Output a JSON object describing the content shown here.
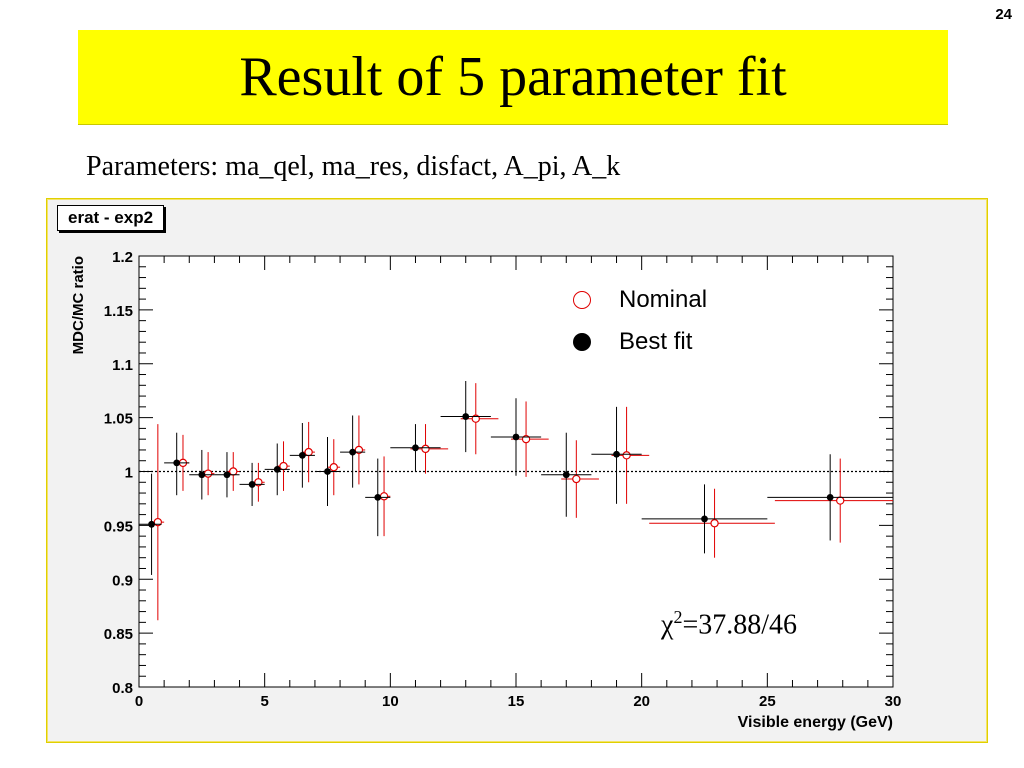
{
  "page_number": "24",
  "title": "Result of 5 parameter fit",
  "subtitle": "Parameters: ma_qel, ma_res, disfact, A_pi, A_k",
  "chart_data": {
    "type": "scatter",
    "title": "erat - exp2",
    "xlabel": "Visible energy (GeV)",
    "ylabel": "MDC/MC ratio",
    "xlim": [
      0,
      30
    ],
    "ylim": [
      0.8,
      1.2
    ],
    "xticks": [
      "0",
      "5",
      "10",
      "15",
      "20",
      "25",
      "30"
    ],
    "yticks": [
      "0.8",
      "0.85",
      "0.9",
      "0.95",
      "1",
      "1.05",
      "1.1",
      "1.15",
      "1.2"
    ],
    "reference_line": 1.0,
    "legend": {
      "placement": "top-right",
      "entries": [
        "Nominal",
        "Best fit"
      ]
    },
    "annotation": {
      "chi2_label": "χ",
      "chi2_sup": "2",
      "chi2_value": "=37.88/46"
    },
    "colors": {
      "nominal": "#e00000",
      "best_fit": "#000000"
    },
    "series": [
      {
        "name": "Nominal",
        "marker": "open-circle",
        "points": [
          {
            "x": 0.75,
            "y": 0.953,
            "xlo": 0.5,
            "xhi": 1.0,
            "ylo": 0.862,
            "yhi": 1.044
          },
          {
            "x": 1.75,
            "y": 1.008,
            "xlo": 1.5,
            "xhi": 2.0,
            "ylo": 0.982,
            "yhi": 1.034
          },
          {
            "x": 2.75,
            "y": 0.998,
            "xlo": 2.5,
            "xhi": 3.0,
            "ylo": 0.978,
            "yhi": 1.018
          },
          {
            "x": 3.75,
            "y": 1.0,
            "xlo": 3.5,
            "xhi": 4.0,
            "ylo": 0.982,
            "yhi": 1.018
          },
          {
            "x": 4.75,
            "y": 0.99,
            "xlo": 4.5,
            "xhi": 5.0,
            "ylo": 0.972,
            "yhi": 1.008
          },
          {
            "x": 5.75,
            "y": 1.005,
            "xlo": 5.5,
            "xhi": 6.0,
            "ylo": 0.982,
            "yhi": 1.028
          },
          {
            "x": 6.75,
            "y": 1.018,
            "xlo": 6.5,
            "xhi": 7.0,
            "ylo": 0.99,
            "yhi": 1.046
          },
          {
            "x": 7.75,
            "y": 1.004,
            "xlo": 7.5,
            "xhi": 8.0,
            "ylo": 0.978,
            "yhi": 1.03
          },
          {
            "x": 8.75,
            "y": 1.02,
            "xlo": 8.5,
            "xhi": 9.0,
            "ylo": 0.988,
            "yhi": 1.052
          },
          {
            "x": 9.75,
            "y": 0.977,
            "xlo": 9.5,
            "xhi": 10.0,
            "ylo": 0.94,
            "yhi": 1.014
          },
          {
            "x": 11.4,
            "y": 1.021,
            "xlo": 10.8,
            "xhi": 12.3,
            "ylo": 0.998,
            "yhi": 1.044
          },
          {
            "x": 13.4,
            "y": 1.049,
            "xlo": 12.8,
            "xhi": 14.3,
            "ylo": 1.016,
            "yhi": 1.082
          },
          {
            "x": 15.4,
            "y": 1.03,
            "xlo": 14.8,
            "xhi": 16.3,
            "ylo": 0.995,
            "yhi": 1.065
          },
          {
            "x": 17.4,
            "y": 0.993,
            "xlo": 16.8,
            "xhi": 18.3,
            "ylo": 0.957,
            "yhi": 1.029
          },
          {
            "x": 19.4,
            "y": 1.015,
            "xlo": 18.8,
            "xhi": 20.3,
            "ylo": 0.97,
            "yhi": 1.06
          },
          {
            "x": 22.9,
            "y": 0.952,
            "xlo": 20.3,
            "xhi": 25.3,
            "ylo": 0.92,
            "yhi": 0.984
          },
          {
            "x": 27.9,
            "y": 0.973,
            "xlo": 25.3,
            "xhi": 30.0,
            "ylo": 0.934,
            "yhi": 1.012
          }
        ]
      },
      {
        "name": "Best fit",
        "marker": "filled-circle",
        "points": [
          {
            "x": 0.5,
            "y": 0.951,
            "xlo": 0.0,
            "xhi": 0.9,
            "ylo": 0.904,
            "yhi": 0.998
          },
          {
            "x": 1.5,
            "y": 1.008,
            "xlo": 1.0,
            "xhi": 2.0,
            "ylo": 0.978,
            "yhi": 1.036
          },
          {
            "x": 2.5,
            "y": 0.997,
            "xlo": 2.0,
            "xhi": 3.0,
            "ylo": 0.974,
            "yhi": 1.02
          },
          {
            "x": 3.5,
            "y": 0.997,
            "xlo": 3.0,
            "xhi": 4.0,
            "ylo": 0.976,
            "yhi": 1.018
          },
          {
            "x": 4.5,
            "y": 0.988,
            "xlo": 4.0,
            "xhi": 5.0,
            "ylo": 0.968,
            "yhi": 1.008
          },
          {
            "x": 5.5,
            "y": 1.002,
            "xlo": 5.0,
            "xhi": 6.0,
            "ylo": 0.978,
            "yhi": 1.026
          },
          {
            "x": 6.5,
            "y": 1.015,
            "xlo": 6.0,
            "xhi": 7.0,
            "ylo": 0.985,
            "yhi": 1.045
          },
          {
            "x": 7.5,
            "y": 1.0,
            "xlo": 7.0,
            "xhi": 8.0,
            "ylo": 0.968,
            "yhi": 1.032
          },
          {
            "x": 8.5,
            "y": 1.018,
            "xlo": 8.0,
            "xhi": 9.0,
            "ylo": 0.985,
            "yhi": 1.052
          },
          {
            "x": 9.5,
            "y": 0.976,
            "xlo": 9.0,
            "xhi": 10.0,
            "ylo": 0.94,
            "yhi": 1.012
          },
          {
            "x": 11.0,
            "y": 1.022,
            "xlo": 10.0,
            "xhi": 12.0,
            "ylo": 1.0,
            "yhi": 1.044
          },
          {
            "x": 13.0,
            "y": 1.051,
            "xlo": 12.0,
            "xhi": 14.0,
            "ylo": 1.018,
            "yhi": 1.084
          },
          {
            "x": 15.0,
            "y": 1.032,
            "xlo": 14.0,
            "xhi": 16.0,
            "ylo": 0.996,
            "yhi": 1.068
          },
          {
            "x": 17.0,
            "y": 0.997,
            "xlo": 16.0,
            "xhi": 18.0,
            "ylo": 0.958,
            "yhi": 1.036
          },
          {
            "x": 19.0,
            "y": 1.016,
            "xlo": 18.0,
            "xhi": 20.0,
            "ylo": 0.97,
            "yhi": 1.06
          },
          {
            "x": 22.5,
            "y": 0.956,
            "xlo": 20.0,
            "xhi": 25.0,
            "ylo": 0.924,
            "yhi": 0.988
          },
          {
            "x": 27.5,
            "y": 0.976,
            "xlo": 25.0,
            "xhi": 30.0,
            "ylo": 0.936,
            "yhi": 1.016
          }
        ]
      }
    ]
  }
}
